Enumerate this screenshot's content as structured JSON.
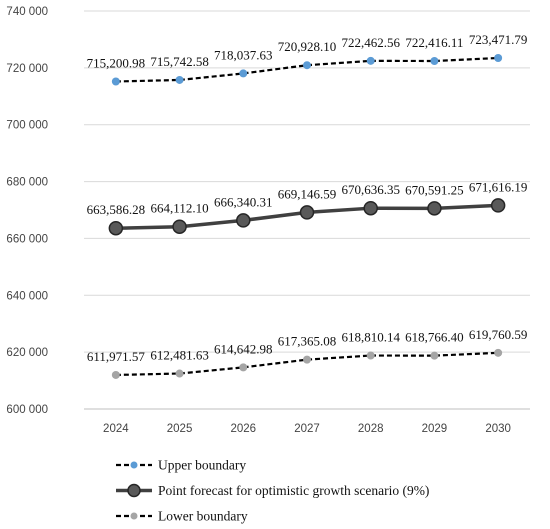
{
  "chart_data": {
    "type": "line",
    "title": "",
    "xlabel": "",
    "ylabel": "",
    "categories": [
      "2024",
      "2025",
      "2026",
      "2027",
      "2028",
      "2029",
      "2030"
    ],
    "ylim": [
      600000,
      740000
    ],
    "yticks": [
      600000,
      620000,
      640000,
      660000,
      680000,
      700000,
      720000,
      740000
    ],
    "ytick_labels": [
      "600 000",
      "620 000",
      "640 000",
      "660 000",
      "680 000",
      "700 000",
      "720 000",
      "740 000"
    ],
    "grid": true,
    "legend_position": "bottom",
    "series": [
      {
        "name": "Upper boundary",
        "values": [
          715200.98,
          715742.58,
          718037.63,
          720928.1,
          722462.56,
          722416.11,
          723471.79
        ],
        "labels": [
          "715,200.98",
          "715,742.58",
          "718,037.63",
          "720,928.10",
          "722,462.56",
          "722,416.11",
          "723,471.79"
        ],
        "line_color": "#000000",
        "marker_color": "#5b9bd5",
        "line_style": "dashed"
      },
      {
        "name": "Point forecast for optimistic growth scenario (9%)",
        "values": [
          663586.28,
          664112.1,
          666340.31,
          669146.59,
          670636.35,
          670591.25,
          671616.19
        ],
        "labels": [
          "663,586.28",
          "664,112.10",
          "666,340.31",
          "669,146.59",
          "670,636.35",
          "670,591.25",
          "671,616.19"
        ],
        "line_color": "#404040",
        "marker_color": "#595959",
        "line_style": "solid"
      },
      {
        "name": "Lower boundary",
        "values": [
          611971.57,
          612481.63,
          614642.98,
          617365.08,
          618810.14,
          618766.4,
          619760.59
        ],
        "labels": [
          "611,971.57",
          "612,481.63",
          "614,642.98",
          "617,365.08",
          "618,810.14",
          "618,766.40",
          "619,760.59"
        ],
        "line_color": "#000000",
        "marker_color": "#a5a5a5",
        "line_style": "dashed"
      }
    ]
  }
}
